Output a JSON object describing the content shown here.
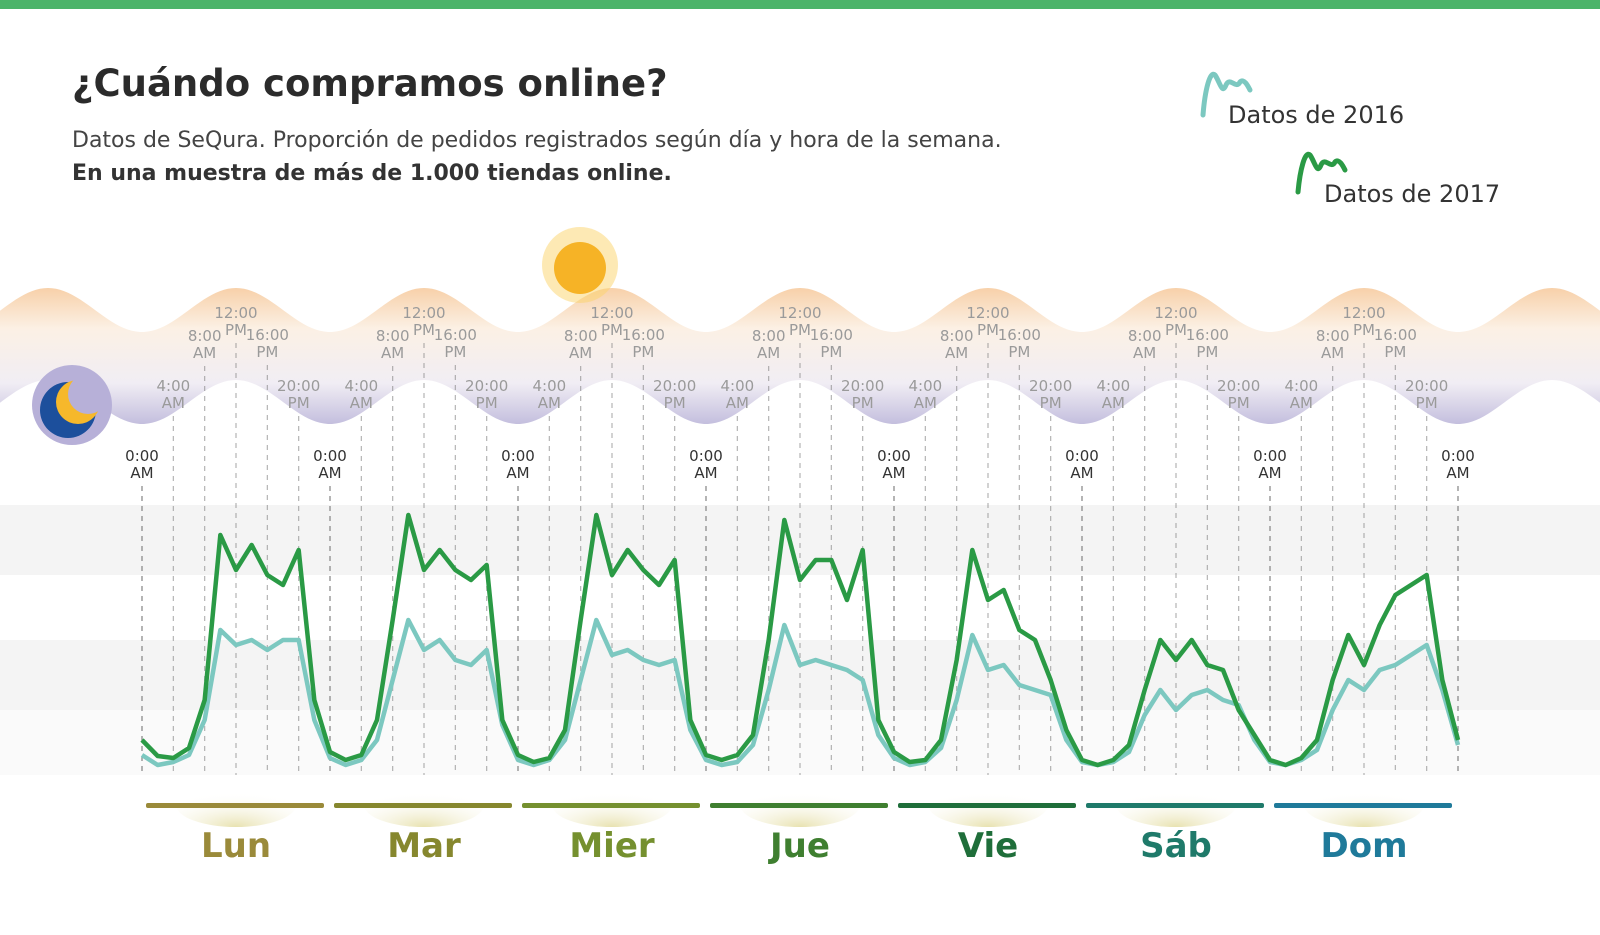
{
  "chart_data": {
    "type": "line",
    "title": "¿Cuándo compramos online?",
    "subtitle": "Datos de SeQura. Proporción de pedidos registrados según día y hora de la semana.",
    "subtitle2": "En una muestra de más de 1.000 tiendas online.",
    "x": [
      0,
      2,
      4,
      6,
      8,
      10,
      12,
      14,
      16,
      18,
      20,
      22,
      24,
      26,
      28,
      30,
      32,
      34,
      36,
      38,
      40,
      42,
      44,
      46,
      48,
      50,
      52,
      54,
      56,
      58,
      60,
      62,
      64,
      66,
      68,
      70,
      72,
      74,
      76,
      78,
      80,
      82,
      84,
      86,
      88,
      90,
      92,
      94,
      96,
      98,
      100,
      102,
      104,
      106,
      108,
      110,
      112,
      114,
      116,
      118,
      120,
      122,
      124,
      126,
      128,
      130,
      132,
      134,
      136,
      138,
      140,
      142,
      144,
      146,
      148,
      150,
      152,
      154,
      156,
      158,
      160,
      162,
      164,
      166,
      168
    ],
    "xlim": [
      0,
      168
    ],
    "ylim": [
      0,
      300
    ],
    "xticks": [
      {
        "value": 0,
        "label": "0:00 AM"
      },
      {
        "value": 4,
        "label": "4:00 AM"
      },
      {
        "value": 8,
        "label": "8:00 AM"
      },
      {
        "value": 12,
        "label": "12:00 PM"
      },
      {
        "value": 16,
        "label": "16:00 PM"
      },
      {
        "value": 20,
        "label": "20:00 PM"
      },
      {
        "value": 24,
        "label": "0:00 AM"
      },
      {
        "value": 28,
        "label": "4:00 AM"
      },
      {
        "value": 32,
        "label": "8:00 AM"
      },
      {
        "value": 36,
        "label": "12:00 PM"
      },
      {
        "value": 40,
        "label": "16:00 PM"
      },
      {
        "value": 44,
        "label": "20:00 PM"
      },
      {
        "value": 48,
        "label": "0:00 AM"
      },
      {
        "value": 52,
        "label": "4:00 AM"
      },
      {
        "value": 56,
        "label": "8:00 AM"
      },
      {
        "value": 60,
        "label": "12:00 PM"
      },
      {
        "value": 64,
        "label": "16:00 PM"
      },
      {
        "value": 68,
        "label": "20:00 PM"
      },
      {
        "value": 72,
        "label": "0:00 AM"
      },
      {
        "value": 76,
        "label": "4:00 AM"
      },
      {
        "value": 80,
        "label": "8:00 AM"
      },
      {
        "value": 84,
        "label": "12:00 PM"
      },
      {
        "value": 88,
        "label": "16:00 PM"
      },
      {
        "value": 92,
        "label": "20:00 PM"
      },
      {
        "value": 96,
        "label": "0:00 AM"
      },
      {
        "value": 100,
        "label": "4:00 AM"
      },
      {
        "value": 104,
        "label": "8:00 AM"
      },
      {
        "value": 108,
        "label": "12:00 PM"
      },
      {
        "value": 112,
        "label": "16:00 PM"
      },
      {
        "value": 116,
        "label": "20:00 PM"
      },
      {
        "value": 120,
        "label": "0:00 AM"
      },
      {
        "value": 124,
        "label": "4:00 AM"
      },
      {
        "value": 128,
        "label": "8:00 AM"
      },
      {
        "value": 132,
        "label": "12:00 PM"
      },
      {
        "value": 136,
        "label": "16:00 PM"
      },
      {
        "value": 140,
        "label": "20:00 PM"
      },
      {
        "value": 144,
        "label": "0:00 AM"
      },
      {
        "value": 148,
        "label": "4:00 AM"
      },
      {
        "value": 152,
        "label": "8:00 AM"
      },
      {
        "value": 156,
        "label": "12:00 PM"
      },
      {
        "value": 160,
        "label": "16:00 PM"
      },
      {
        "value": 164,
        "label": "20:00 PM"
      },
      {
        "value": 168,
        "label": "0:00 AM"
      }
    ],
    "days": [
      {
        "label": "Lun",
        "color": "#9a8a3a"
      },
      {
        "label": "Mar",
        "color": "#86872e"
      },
      {
        "label": "Mier",
        "color": "#75902f"
      },
      {
        "label": "Jue",
        "color": "#3f7f30"
      },
      {
        "label": "Vie",
        "color": "#1f6e3a"
      },
      {
        "label": "Sáb",
        "color": "#1f7a6a"
      },
      {
        "label": "Dom",
        "color": "#1f7a9a"
      }
    ],
    "series": [
      {
        "name": "Datos de 2016",
        "color": "#7cc8c0",
        "values": [
          20,
          10,
          13,
          20,
          55,
          145,
          130,
          135,
          125,
          135,
          135,
          55,
          17,
          10,
          15,
          35,
          95,
          155,
          125,
          135,
          115,
          110,
          125,
          50,
          15,
          10,
          15,
          35,
          95,
          155,
          120,
          125,
          115,
          110,
          115,
          45,
          15,
          10,
          13,
          30,
          85,
          150,
          110,
          115,
          110,
          105,
          95,
          40,
          17,
          10,
          13,
          27,
          75,
          140,
          105,
          110,
          90,
          85,
          80,
          35,
          13,
          10,
          13,
          23,
          60,
          85,
          65,
          80,
          85,
          75,
          70,
          35,
          13,
          10,
          15,
          25,
          65,
          95,
          85,
          105,
          110,
          120,
          130,
          85,
          30
        ]
      },
      {
        "name": "Datos de 2017",
        "color": "#2a9a45",
        "values": [
          35,
          19,
          17,
          27,
          75,
          240,
          205,
          230,
          200,
          190,
          225,
          75,
          23,
          15,
          20,
          55,
          155,
          260,
          205,
          225,
          205,
          195,
          210,
          55,
          20,
          13,
          17,
          45,
          155,
          260,
          200,
          225,
          205,
          190,
          215,
          55,
          20,
          15,
          20,
          40,
          135,
          255,
          195,
          215,
          215,
          175,
          225,
          55,
          23,
          13,
          15,
          35,
          115,
          225,
          175,
          185,
          145,
          135,
          95,
          45,
          15,
          10,
          15,
          30,
          85,
          135,
          115,
          135,
          110,
          105,
          65,
          40,
          15,
          10,
          17,
          35,
          95,
          140,
          110,
          150,
          180,
          190,
          200,
          95,
          35
        ]
      }
    ]
  }
}
